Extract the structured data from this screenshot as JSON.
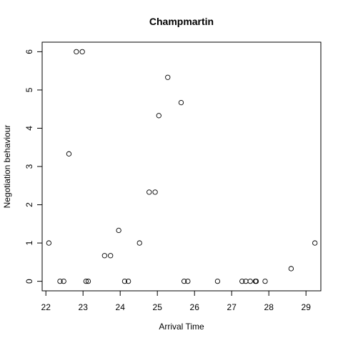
{
  "chart_data": {
    "type": "scatter",
    "title": "Champmartin",
    "xlabel": "Arrival Time",
    "ylabel": "Negotiation behaviour",
    "xlim": [
      21.9,
      29.4
    ],
    "ylim": [
      -0.25,
      6.25
    ],
    "x_ticks": [
      22,
      23,
      24,
      25,
      26,
      27,
      28,
      29
    ],
    "y_ticks": [
      0,
      1,
      2,
      3,
      4,
      5,
      6
    ],
    "grid": false,
    "marker": "open-circle",
    "points": [
      {
        "x": 22.08,
        "y": 1.0
      },
      {
        "x": 22.38,
        "y": 0.0
      },
      {
        "x": 22.48,
        "y": 0.0
      },
      {
        "x": 22.62,
        "y": 3.33
      },
      {
        "x": 22.82,
        "y": 6.0
      },
      {
        "x": 22.98,
        "y": 6.0
      },
      {
        "x": 23.08,
        "y": 0.0
      },
      {
        "x": 23.14,
        "y": 0.0
      },
      {
        "x": 23.58,
        "y": 0.67
      },
      {
        "x": 23.74,
        "y": 0.67
      },
      {
        "x": 23.96,
        "y": 1.33
      },
      {
        "x": 24.12,
        "y": 0.0
      },
      {
        "x": 24.22,
        "y": 0.0
      },
      {
        "x": 24.52,
        "y": 1.0
      },
      {
        "x": 24.78,
        "y": 2.33
      },
      {
        "x": 24.94,
        "y": 2.33
      },
      {
        "x": 25.04,
        "y": 4.33
      },
      {
        "x": 25.28,
        "y": 5.33
      },
      {
        "x": 25.64,
        "y": 4.67
      },
      {
        "x": 25.72,
        "y": 0.0
      },
      {
        "x": 25.82,
        "y": 0.0
      },
      {
        "x": 26.62,
        "y": 0.0
      },
      {
        "x": 27.28,
        "y": 0.0
      },
      {
        "x": 27.38,
        "y": 0.0
      },
      {
        "x": 27.5,
        "y": 0.0
      },
      {
        "x": 27.64,
        "y": 0.0
      },
      {
        "x": 27.66,
        "y": 0.0
      },
      {
        "x": 27.9,
        "y": 0.0
      },
      {
        "x": 28.6,
        "y": 0.33
      },
      {
        "x": 29.24,
        "y": 1.0
      }
    ]
  }
}
